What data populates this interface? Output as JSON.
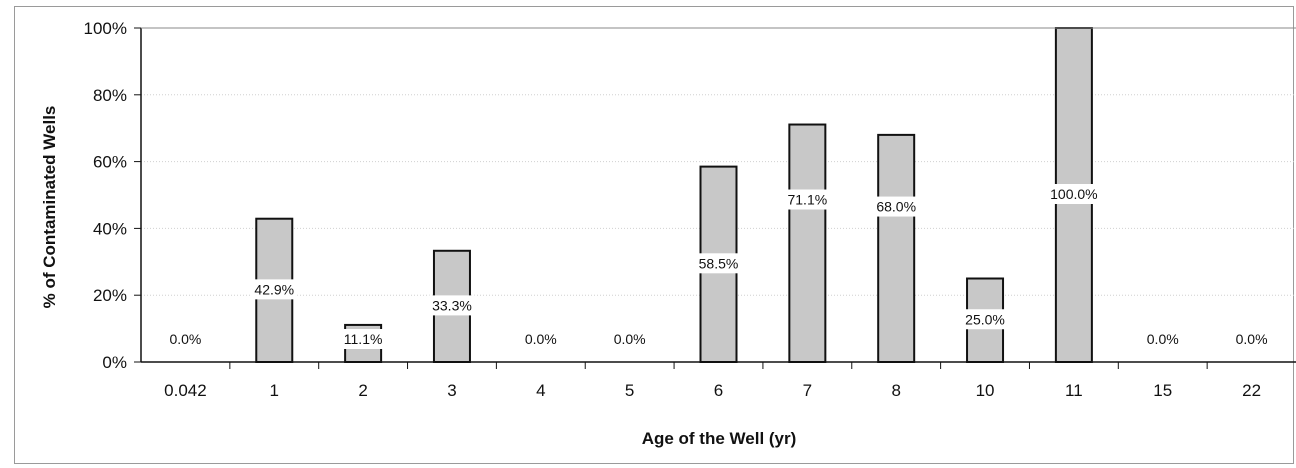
{
  "chart_data": {
    "type": "bar",
    "title": "",
    "xlabel": "Age of the Well (yr)",
    "ylabel": "% of Contaminated Wells",
    "ylim": [
      0,
      100
    ],
    "yticks": [
      "0%",
      "20%",
      "40%",
      "60%",
      "80%",
      "100%"
    ],
    "categories": [
      "0.042",
      "1",
      "2",
      "3",
      "4",
      "5",
      "6",
      "7",
      "8",
      "10",
      "11",
      "15",
      "22"
    ],
    "values": [
      0.0,
      42.9,
      11.1,
      33.3,
      0.0,
      0.0,
      58.5,
      71.1,
      68.0,
      25.0,
      100.0,
      0.0,
      0.0
    ],
    "labels": [
      "0.0%",
      "42.9%",
      "11.1%",
      "33.3%",
      "0.0%",
      "0.0%",
      "58.5%",
      "71.1%",
      "68.0%",
      "25.0%",
      "100.0%",
      "0.0%",
      "0.0%"
    ],
    "grid": true,
    "legend": "none",
    "colors": {
      "bar_fill": "#c8c8c8",
      "bar_stroke": "#111111",
      "grid": "#d0d0d0"
    }
  }
}
